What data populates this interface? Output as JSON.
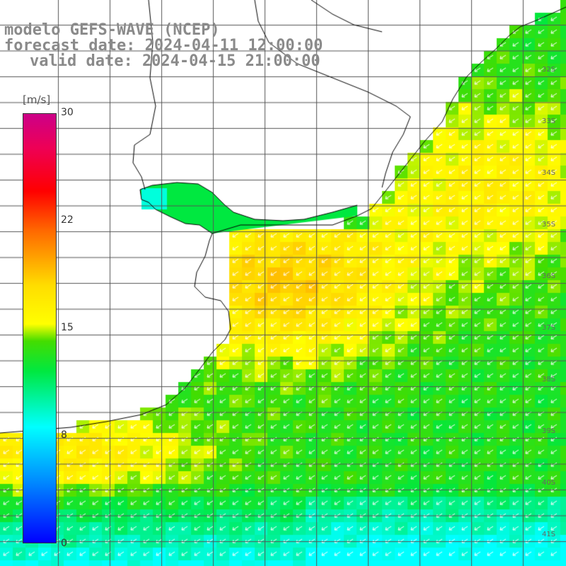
{
  "titles": {
    "line1": "modelo GEFS-WAVE (NCEP)",
    "line2": "forecast date: 2024-04-11 12:00:00",
    "line3": "valid date: 2024-04-15 21:00:00"
  },
  "colorbar": {
    "unit": "[m/s]",
    "min": 0,
    "max": 30,
    "tick_labels": [
      "30",
      "22",
      "15",
      "8",
      "0"
    ],
    "tick_values": [
      30,
      22,
      15,
      8,
      0
    ]
  },
  "latitude_labels": [
    "32S",
    "33S",
    "34S",
    "35S",
    "36S",
    "37S",
    "38S",
    "39S",
    "40S",
    "41S"
  ],
  "colors": {
    "land": "#ffffff",
    "coastline": "#000000",
    "grid": "#555555",
    "arrows": "#ffffff",
    "title_text": "#8a8a8a"
  },
  "field": {
    "variable": "wind speed",
    "direction": "towards southwest",
    "range_shown": [
      8,
      19
    ]
  }
}
